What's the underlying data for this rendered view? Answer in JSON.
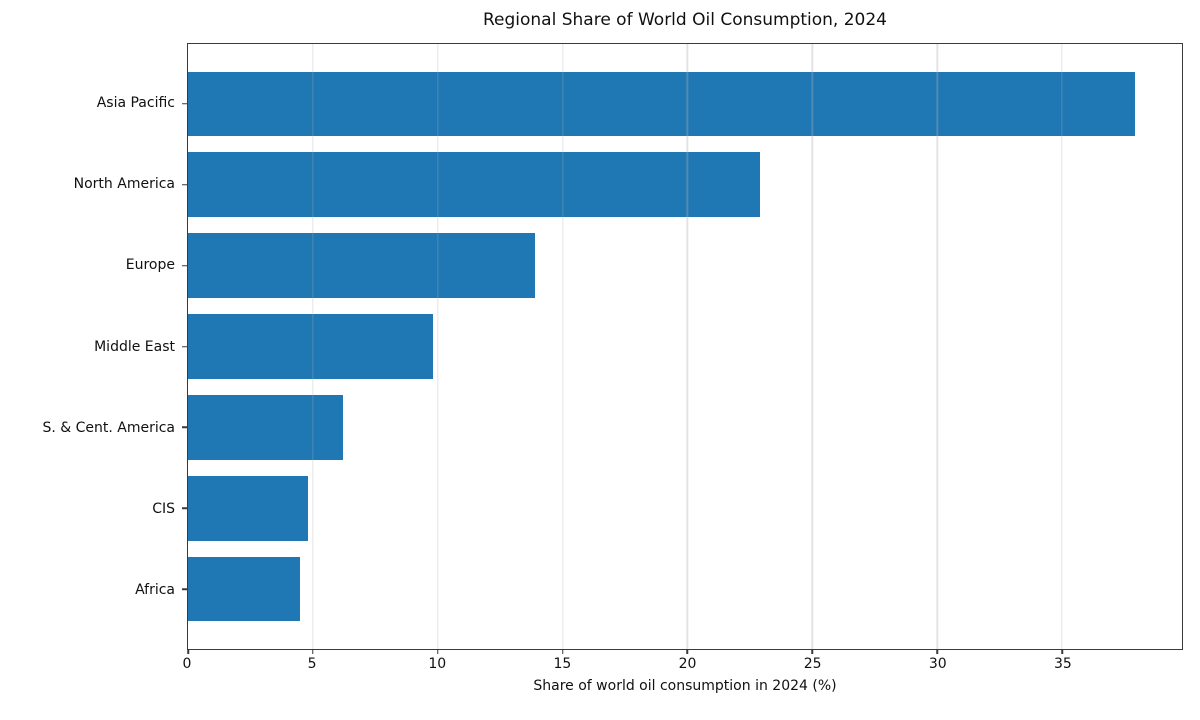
{
  "chart_data": {
    "type": "bar",
    "orientation": "horizontal",
    "title": "Regional Share of World Oil Consumption, 2024",
    "xlabel": "Share of world oil consumption in 2024 (%)",
    "categories": [
      "Asia Pacific",
      "North America",
      "Europe",
      "Middle East",
      "S. & Cent. America",
      "CIS",
      "Africa"
    ],
    "values": [
      37.9,
      22.9,
      13.9,
      9.8,
      6.2,
      4.8,
      4.5
    ],
    "xlim": [
      0,
      39.8
    ],
    "xticks": [
      0,
      5,
      10,
      15,
      20,
      25,
      30,
      35
    ],
    "bar_color": "#1f77b4",
    "grid": true,
    "grid_color": "#b0b0b0",
    "legend": "none"
  }
}
